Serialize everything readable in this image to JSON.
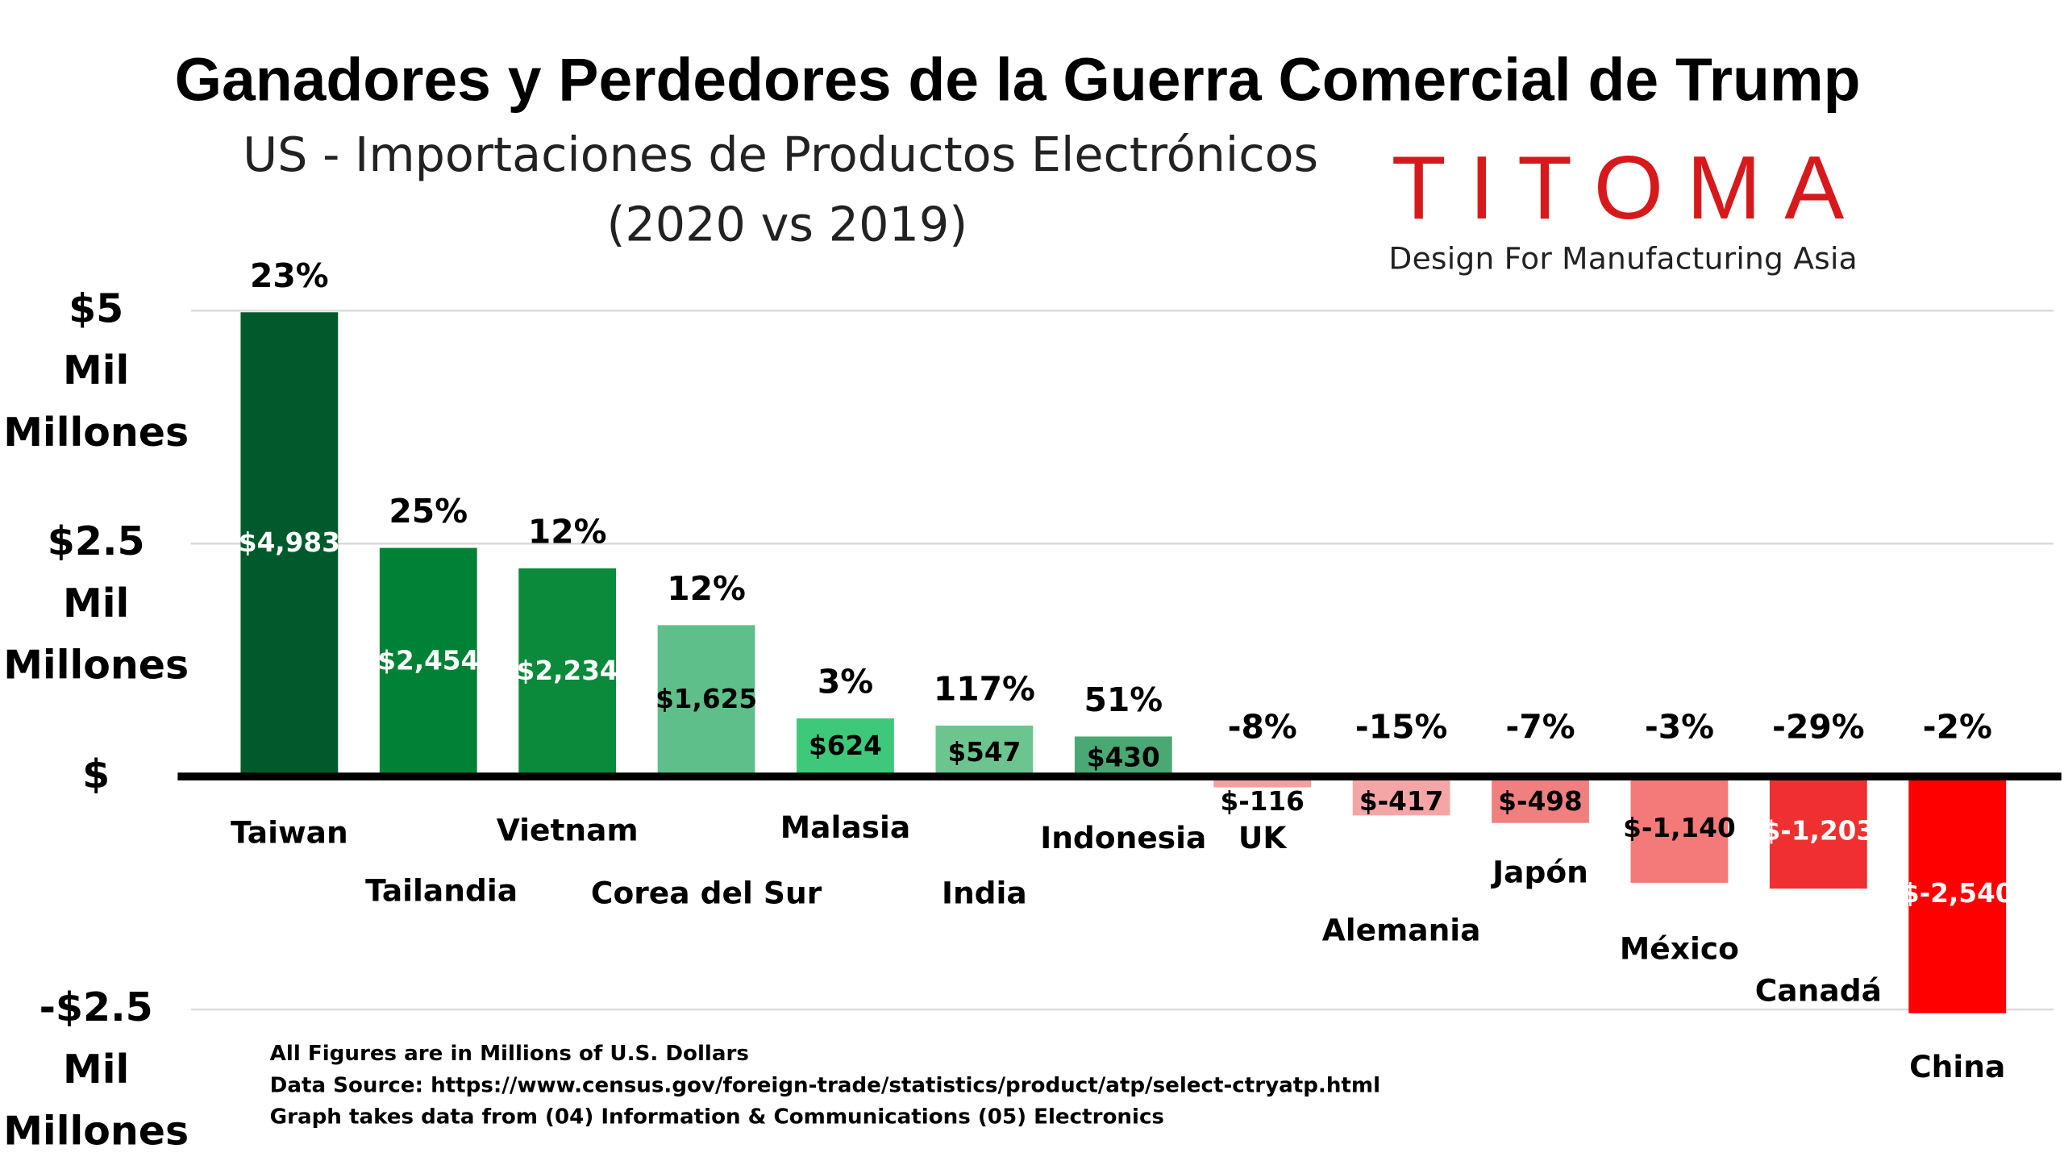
{
  "chart_data": {
    "type": "bar",
    "title": "Ganadores y Perdedores de la Guerra Comercial de Trump",
    "subtitle": [
      "US - Importaciones de Productos Electrónicos",
      "(2020 vs 2019)"
    ],
    "logo": {
      "name": "TITOMA",
      "tagline": "Design For Manufacturing Asia"
    },
    "categories": [
      "Taiwan",
      "Tailandia",
      "Vietnam",
      "Corea del Sur",
      "Malasia",
      "India",
      "Indonesia",
      "UK",
      "Alemania",
      "Japón",
      "México",
      "Canadá",
      "China"
    ],
    "values": [
      4983,
      2454,
      2234,
      1625,
      624,
      547,
      430,
      -116,
      -417,
      -498,
      -1140,
      -1203,
      -2540
    ],
    "value_labels": [
      "$4,983",
      "$2,454",
      "$2,234",
      "$1,625",
      "$624",
      "$547",
      "$430",
      "$-116",
      "$-417",
      "$-498",
      "$-1,140",
      "$-1,203",
      "$-2,540"
    ],
    "pct_change": [
      23,
      25,
      12,
      12,
      3,
      117,
      51,
      -8,
      -15,
      -7,
      -3,
      -29,
      -2
    ],
    "pct_change_labels": [
      "23%",
      "25%",
      "12%",
      "12%",
      "3%",
      "117%",
      "51%",
      "-8%",
      "-15%",
      "-7%",
      "-3%",
      "-29%",
      "-2%"
    ],
    "colors": [
      "#005a2b",
      "#008236",
      "#0a8a3a",
      "#5fbf8a",
      "#3ec97a",
      "#6cc58f",
      "#4aa874",
      "#f4a0a0",
      "#f4a6a6",
      "#f08080",
      "#f47a7a",
      "#f03030",
      "#ff0000"
    ],
    "ylim": [
      -3900,
      5650
    ],
    "yticks": [
      {
        "value": 5000,
        "label": "$5 Mil Millones"
      },
      {
        "value": 2500,
        "label": "$2.5 Mil Millones"
      },
      {
        "value": 0,
        "label": "$"
      },
      {
        "value": -2500,
        "label": "-$2.5 Mil Millones"
      }
    ],
    "grid": true,
    "notes": [
      "All Figures are in Millions of U.S. Dollars",
      "Data Source: https://www.census.gov/foreign-trade/statistics/product/atp/select-ctryatp.html",
      "Graph takes data from (04) Information & Communications (05) Electronics"
    ]
  }
}
